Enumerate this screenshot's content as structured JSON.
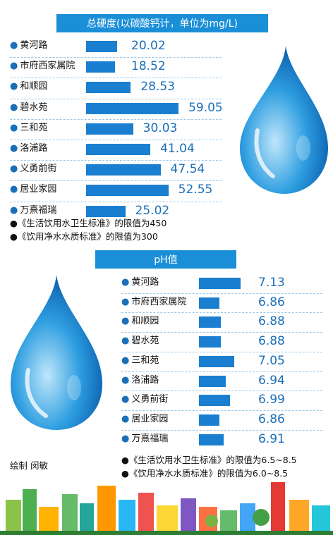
{
  "chart_data": [
    {
      "type": "bar",
      "title": "总硬度(以碳酸钙计，单位为mg/L)",
      "categories": [
        "黄河路",
        "市府西家属院",
        "和顺园",
        "碧水苑",
        "三和苑",
        "洛浦路",
        "义勇前街",
        "居业家园",
        "万熹福瑞"
      ],
      "values": [
        20.02,
        18.52,
        28.53,
        59.05,
        30.03,
        41.04,
        47.54,
        52.55,
        25.02
      ],
      "value_labels": [
        "20.02",
        "18.52",
        "28.53",
        "59.05",
        "30.03",
        "41.04",
        "47.54",
        "52.55",
        "25.02"
      ],
      "notes": [
        "●《生活饮用水卫生标准》的限值为450",
        "●《饮用净水水质标准》的限值为300"
      ],
      "orientation": "horizontal",
      "grid": false
    },
    {
      "type": "bar",
      "title": "pH值",
      "categories": [
        "黄河路",
        "市府西家属院",
        "和顺园",
        "碧水苑",
        "三和苑",
        "洛浦路",
        "义勇前街",
        "居业家园",
        "万熹福瑞"
      ],
      "values": [
        7.13,
        6.86,
        6.88,
        6.88,
        7.05,
        6.94,
        6.99,
        6.86,
        6.91
      ],
      "value_labels": [
        "7.13",
        "6.86",
        "6.88",
        "6.88",
        "7.05",
        "6.94",
        "6.99",
        "6.86",
        "6.91"
      ],
      "notes": [
        "●《生活饮用水卫生标准》的限值为6.5~8.5",
        "●《饮用净水水质标准》的限值为6.0~8.5"
      ],
      "orientation": "horizontal",
      "grid": false
    }
  ],
  "credit": "绘制  闵敏",
  "colors": {
    "banner": "#1a8fd8",
    "bar": "#1a7fd0",
    "value_text": "#1a6fb8",
    "bullet": "#1a6fb8"
  },
  "icons": [
    "water-drop-icon",
    "water-drop-icon",
    "city-skyline-illustration"
  ]
}
